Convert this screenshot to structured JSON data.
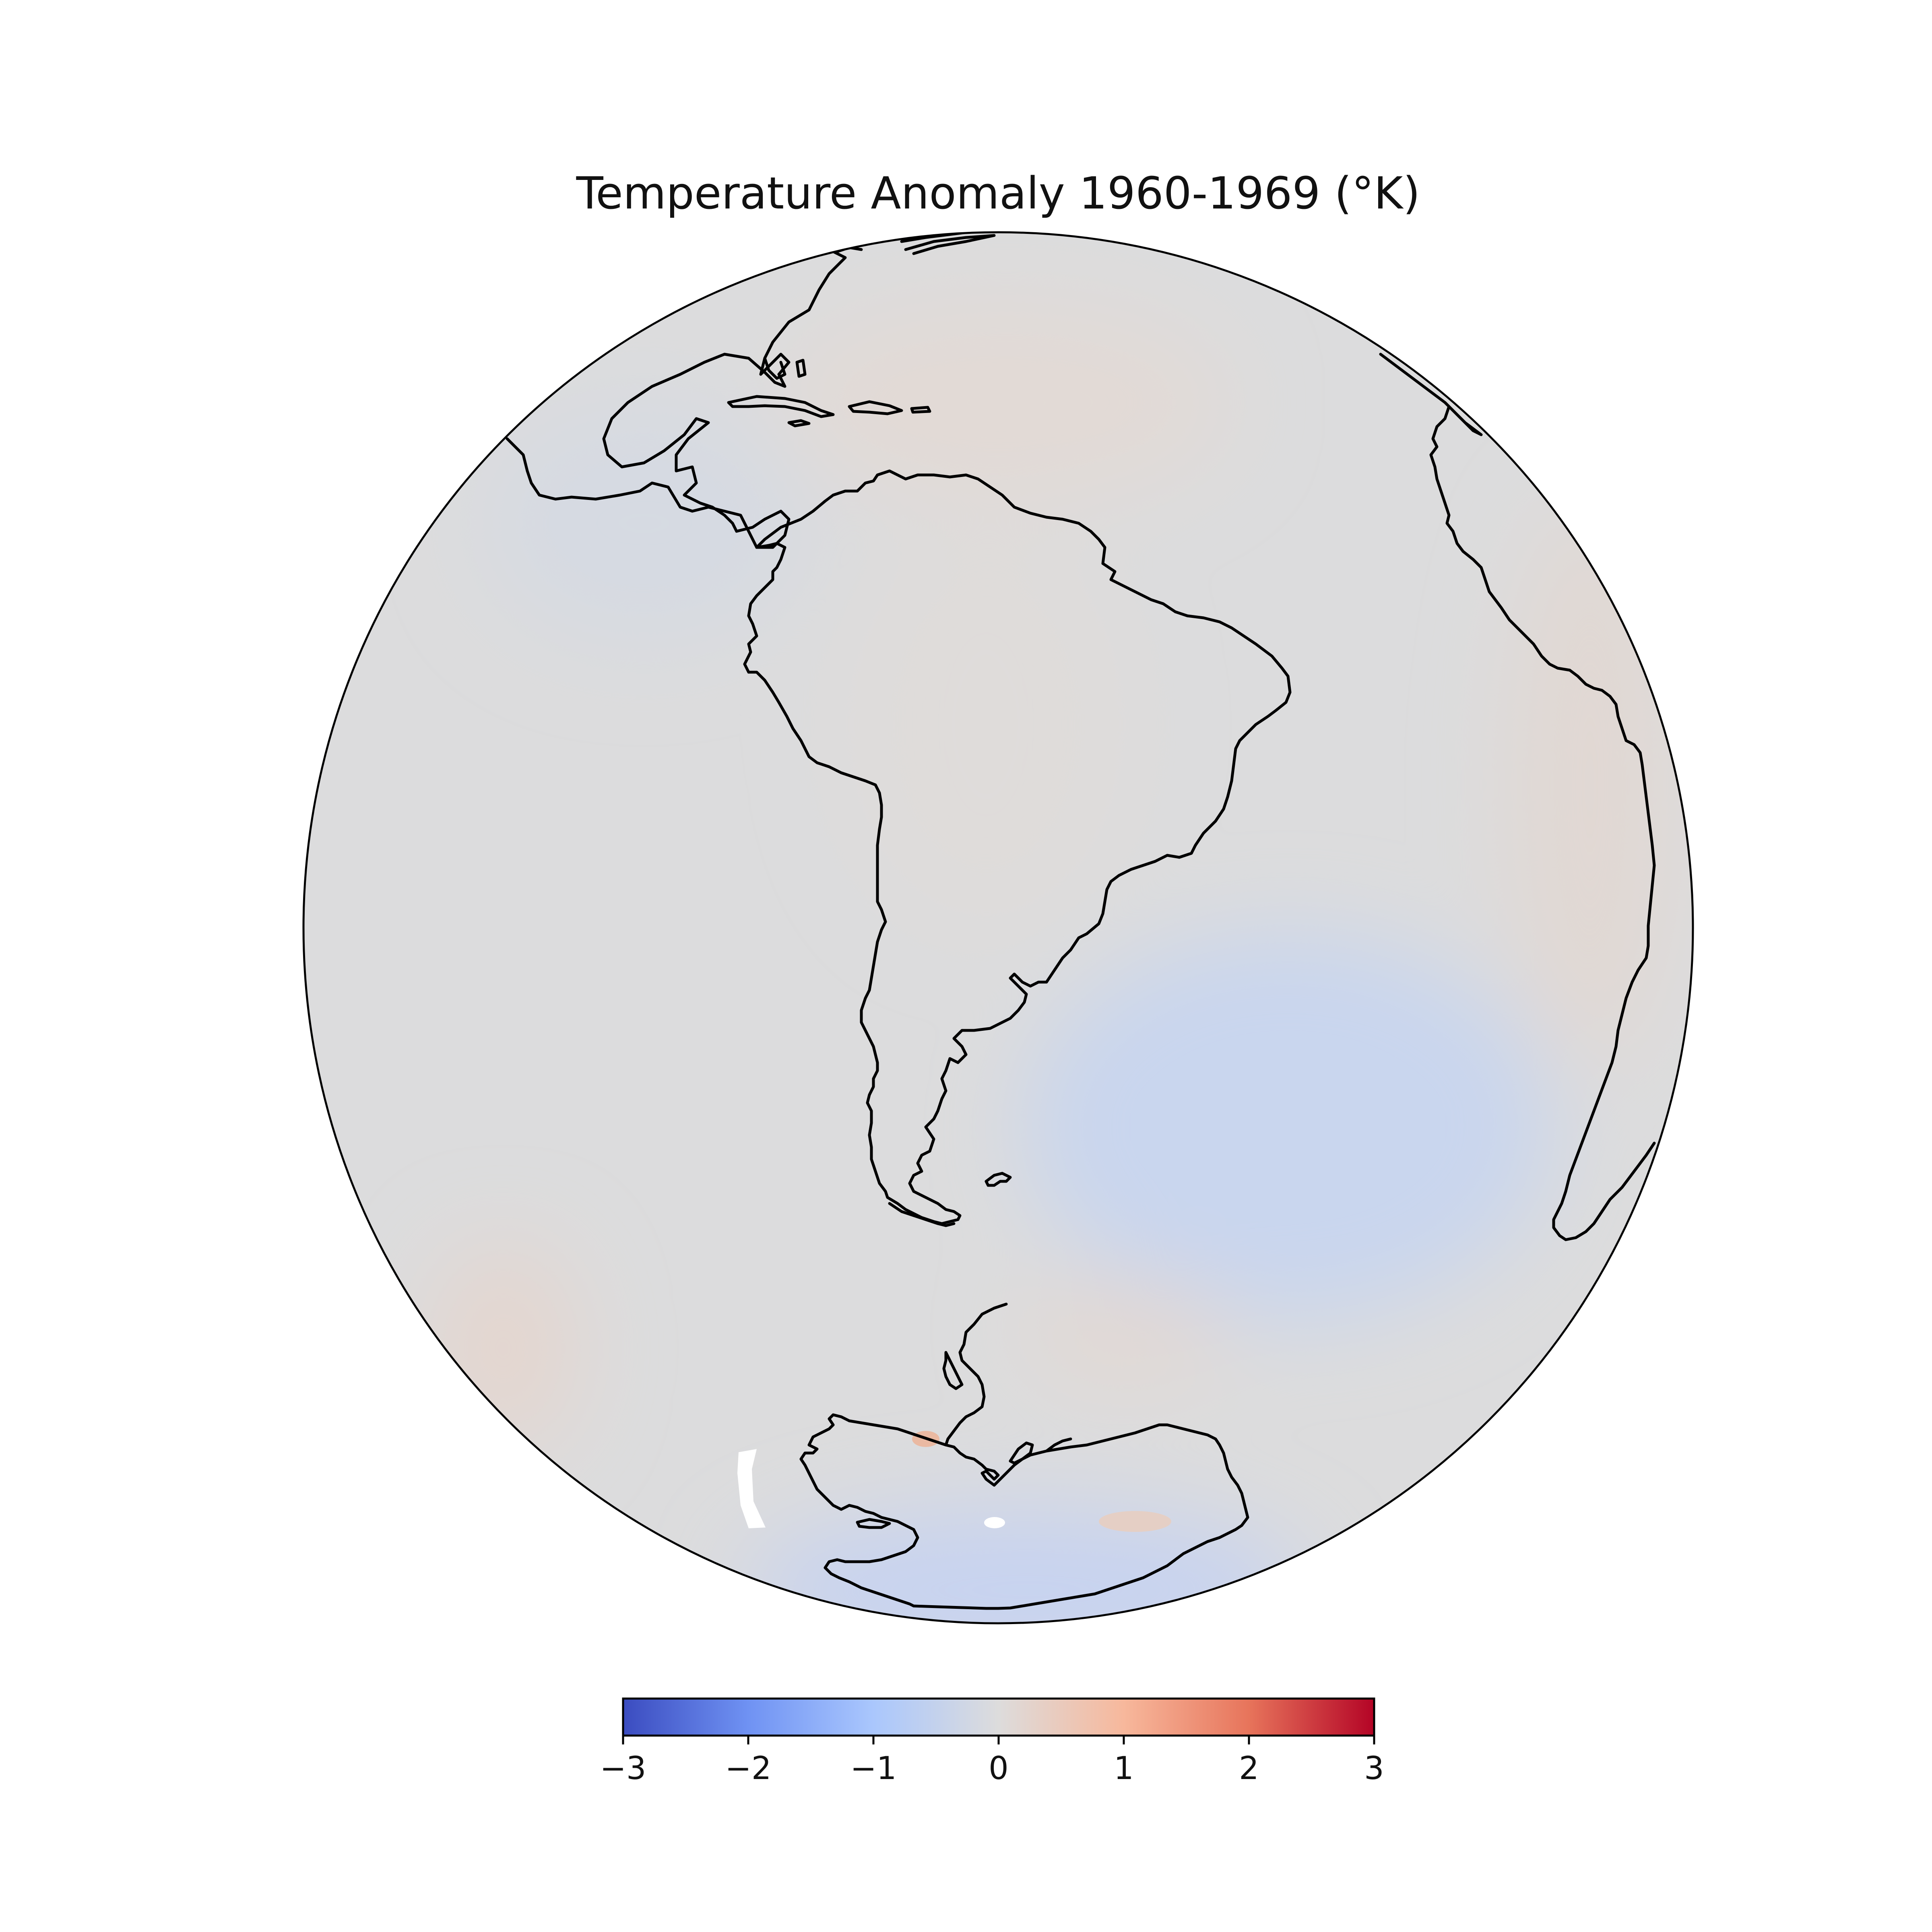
{
  "chart_data": {
    "type": "heatmap",
    "projection": "orthographic",
    "title": "Temperature Anomaly 1960-1969 (°K)",
    "center": {
      "lon": -50,
      "lat": -20
    },
    "colormap": "coolwarm",
    "vmin": -3,
    "vmax": 3,
    "colorbar": {
      "orientation": "horizontal",
      "ticks": [
        "−3",
        "−2",
        "−1",
        "0",
        "1",
        "2",
        "3"
      ],
      "colors": [
        "#3b4cc0",
        "#6f92f3",
        "#aac7fd",
        "#dddcdc",
        "#f7b89c",
        "#e7745b",
        "#b40426"
      ]
    },
    "regions": [
      {
        "name": "South Atlantic",
        "anomaly": -0.4
      },
      {
        "name": "South America",
        "anomaly": 0.05
      },
      {
        "name": "Caribbean",
        "anomaly": 0.1
      },
      {
        "name": "Africa",
        "anomaly": 0.15
      },
      {
        "name": "South Pacific",
        "anomaly": 0.2
      },
      {
        "name": "Antarctic Peninsula",
        "anomaly": 0.5
      },
      {
        "name": "Antarctica",
        "anomaly": -0.3
      }
    ]
  }
}
